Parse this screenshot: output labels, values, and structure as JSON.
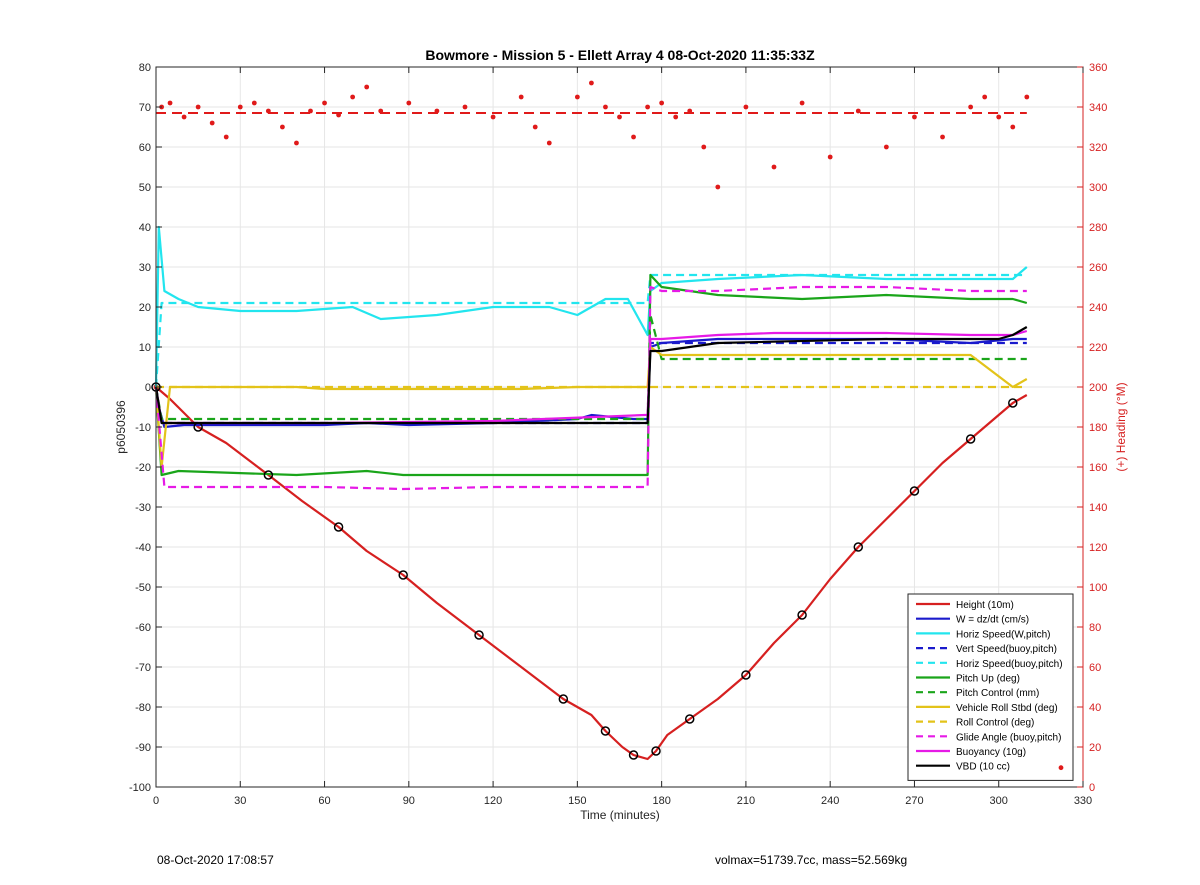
{
  "footer": {
    "timestamp": "08-Oct-2020 17:08:57",
    "vehicle_info": "volmax=51739.7cc, mass=52.569kg"
  },
  "chart_data": {
    "type": "line",
    "title": "Bowmore - Mission 5 - Ellett Array 4 08-Oct-2020 11:35:33Z",
    "xlabel": "Time (minutes)",
    "ylabel": "p6050396",
    "ylabel_right": "(+) Heading (°M)",
    "xlim": [
      0,
      330
    ],
    "ylim": [
      -100,
      80
    ],
    "ylim_right": [
      0,
      360
    ],
    "xticks": [
      0,
      30,
      60,
      90,
      120,
      150,
      180,
      210,
      240,
      270,
      300,
      330
    ],
    "yticks": [
      -100,
      -90,
      -80,
      -70,
      -60,
      -50,
      -40,
      -30,
      -20,
      -10,
      0,
      10,
      20,
      30,
      40,
      50,
      60,
      70,
      80
    ],
    "yticks_right": [
      0,
      20,
      40,
      60,
      80,
      100,
      120,
      140,
      160,
      180,
      200,
      220,
      240,
      260,
      280,
      300,
      320,
      340,
      360
    ],
    "grid": true,
    "legend_position": "bottom-right",
    "series": [
      {
        "name": "Height (10m)",
        "color": "#d62020",
        "style": "solid",
        "x": [
          0,
          5,
          15,
          25,
          40,
          52,
          65,
          75,
          88,
          100,
          115,
          130,
          145,
          155,
          160,
          166,
          170,
          175,
          178,
          182,
          190,
          200,
          210,
          220,
          230,
          240,
          250,
          260,
          270,
          280,
          290,
          300,
          305,
          310
        ],
        "y": [
          0,
          -3,
          -10,
          -14,
          -22,
          -28.5,
          -35,
          -41,
          -47,
          -54,
          -62,
          -70,
          -78,
          -82,
          -86,
          -90,
          -92,
          -93,
          -91,
          -87,
          -83,
          -78,
          -72,
          -64,
          -57,
          -48,
          -40,
          -33,
          -26,
          -19,
          -13,
          -7,
          -4,
          -2
        ]
      },
      {
        "name": "W = dz/dt (cm/s)",
        "color": "#1a1acc",
        "style": "solid",
        "x": [
          0,
          1,
          3,
          10,
          30,
          60,
          75,
          90,
          120,
          150,
          155,
          170,
          175,
          176,
          180,
          200,
          230,
          260,
          290,
          305,
          310
        ],
        "y": [
          0,
          -5,
          -10,
          -9.5,
          -9.5,
          -9.5,
          -9,
          -9.5,
          -9,
          -8,
          -7,
          -8,
          -8,
          10,
          11,
          12,
          12,
          12,
          11,
          12,
          12
        ]
      },
      {
        "name": "Horiz Speed(W,pitch)",
        "color": "#22e5ee",
        "style": "solid",
        "x": [
          0,
          1,
          3,
          8,
          15,
          30,
          50,
          70,
          80,
          100,
          120,
          140,
          150,
          160,
          168,
          175,
          176,
          180,
          200,
          230,
          260,
          290,
          305,
          310
        ],
        "y": [
          0,
          40,
          24,
          22,
          20,
          19,
          19,
          20,
          17,
          18,
          20,
          20,
          18,
          22,
          22,
          13,
          24,
          26,
          27,
          28,
          27,
          27,
          27,
          30
        ]
      },
      {
        "name": "Vert Speed(buoy,pitch)",
        "color": "#1a1acc",
        "style": "dashed",
        "x": [
          0,
          2,
          175,
          176,
          310
        ],
        "y": [
          0,
          -9,
          -9,
          11,
          11
        ]
      },
      {
        "name": "Horiz Speed(buoy,pitch)",
        "color": "#22e5ee",
        "style": "dashed",
        "x": [
          0,
          2,
          175,
          176,
          310
        ],
        "y": [
          0,
          21,
          21,
          28,
          28
        ]
      },
      {
        "name": "Pitch Up (deg)",
        "color": "#1aa51a",
        "style": "solid",
        "x": [
          0,
          2,
          8,
          50,
          75,
          88,
          120,
          150,
          175,
          176,
          180,
          200,
          230,
          260,
          290,
          305,
          310
        ],
        "y": [
          0,
          -22,
          -21,
          -22,
          -21,
          -22,
          -22,
          -22,
          -22,
          28,
          25,
          23,
          22,
          23,
          22,
          22,
          21
        ]
      },
      {
        "name": "Pitch Control (mm)",
        "color": "#1aa51a",
        "style": "dashed",
        "x": [
          0,
          2,
          175,
          176,
          180,
          310
        ],
        "y": [
          0,
          -8,
          -8,
          18,
          7,
          7
        ]
      },
      {
        "name": "Vehicle Roll Stbd (deg)",
        "color": "#e3c31a",
        "style": "solid",
        "x": [
          0,
          2,
          5,
          15,
          30,
          50,
          60,
          100,
          130,
          150,
          165,
          175,
          176,
          180,
          200,
          230,
          260,
          290,
          305,
          310
        ],
        "y": [
          0,
          -20,
          0,
          0,
          0,
          0,
          -0.5,
          -0.5,
          -0.5,
          0,
          0,
          0,
          10,
          8,
          8,
          8,
          8,
          8,
          0,
          2
        ]
      },
      {
        "name": "Roll Control (deg)",
        "color": "#e3c31a",
        "style": "dashed",
        "x": [
          0,
          310
        ],
        "y": [
          0,
          0
        ]
      },
      {
        "name": "Glide Angle (buoy,pitch)",
        "color": "#e61ae6",
        "style": "dashed",
        "x": [
          0,
          3,
          60,
          88,
          120,
          150,
          175,
          176,
          180,
          200,
          230,
          260,
          290,
          310
        ],
        "y": [
          0,
          -25,
          -25,
          -25.5,
          -25,
          -25,
          -25,
          25,
          24,
          24,
          25,
          25,
          24,
          24
        ]
      },
      {
        "name": "Buoyancy (10g)",
        "color": "#e61ae6",
        "style": "solid",
        "x": [
          0,
          2,
          60,
          120,
          174,
          175,
          176,
          180,
          200,
          220,
          260,
          290,
          305,
          310
        ],
        "y": [
          0,
          -9,
          -9,
          -8.5,
          -7,
          -7,
          12,
          12,
          13,
          13.5,
          13.5,
          13,
          13,
          14
        ]
      },
      {
        "name": "VBD (10 cc)",
        "color": "#000000",
        "style": "solid",
        "x": [
          0,
          2,
          30,
          60,
          120,
          175,
          176,
          180,
          200,
          260,
          300,
          305,
          310
        ],
        "y": [
          0,
          -9,
          -9,
          -9,
          -9,
          -9,
          9,
          9,
          11,
          12,
          12,
          13,
          15
        ]
      }
    ],
    "heading": {
      "name": "(+) Heading (°M)",
      "color": "#e01a1a",
      "mean_line": 337,
      "x": [
        0,
        2,
        5,
        10,
        15,
        20,
        25,
        30,
        35,
        40,
        45,
        50,
        55,
        60,
        65,
        70,
        75,
        80,
        90,
        100,
        110,
        120,
        130,
        135,
        140,
        150,
        155,
        160,
        165,
        170,
        175,
        180,
        185,
        190,
        195,
        200,
        210,
        220,
        230,
        240,
        250,
        260,
        270,
        280,
        290,
        295,
        300,
        305,
        310
      ],
      "y": [
        200,
        340,
        342,
        335,
        340,
        332,
        325,
        340,
        342,
        338,
        330,
        322,
        338,
        342,
        336,
        345,
        350,
        338,
        342,
        338,
        340,
        335,
        345,
        330,
        322,
        345,
        352,
        340,
        335,
        325,
        340,
        342,
        335,
        338,
        320,
        300,
        340,
        310,
        342,
        315,
        338,
        320,
        335,
        325,
        340,
        345,
        335,
        330,
        345
      ]
    }
  }
}
